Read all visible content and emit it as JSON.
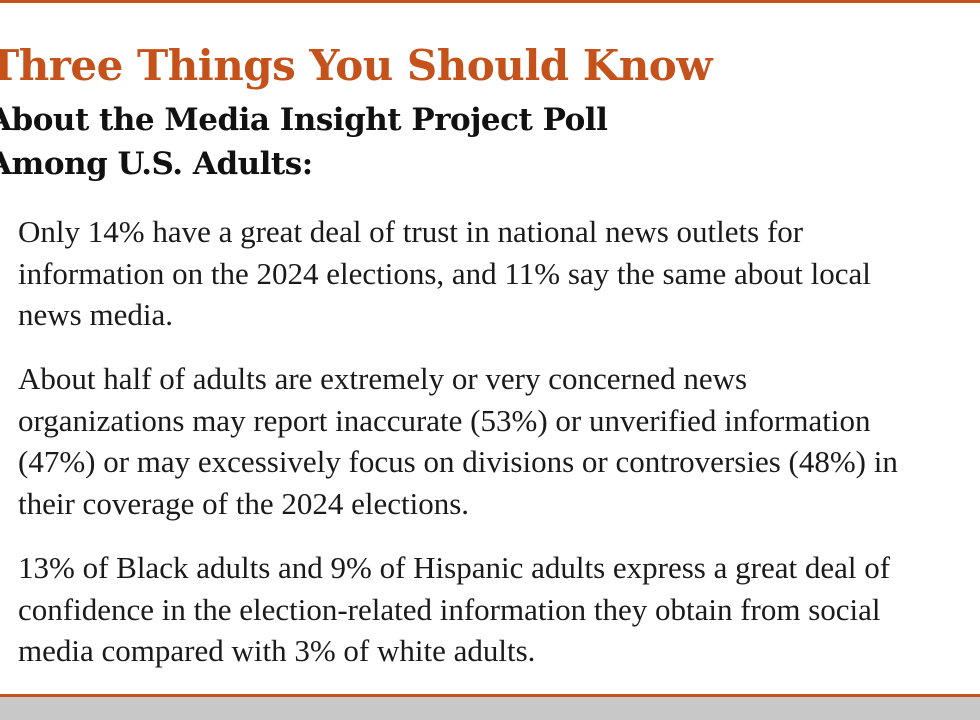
{
  "title": "Three Things You Should Know",
  "subtitle_lines": [
    "About the Media Insight Project Poll",
    "Among U.S. Adults:"
  ],
  "points": [
    {
      "lines": [
        "Only 14% have a great deal of trust in national news outlets for",
        "information on the 2024 elections, and 11% say the same about local",
        "news media."
      ]
    },
    {
      "lines": [
        "About half of adults are extremely or very concerned news",
        "organizations may report inaccurate (53%) or unverified information",
        "(47%) or may excessively focus on divisions or controversies (48%) in",
        "their coverage of the 2024 elections."
      ]
    },
    {
      "lines": [
        "13% of Black adults and 9% of Hispanic adults express a great deal of",
        "confidence in the election-related information they obtain from social",
        "media compared with 3% of white adults."
      ]
    }
  ],
  "colors": {
    "accent": "#c4521a",
    "text": "#1a1a1a",
    "footer_band": "#c8c8c8"
  }
}
